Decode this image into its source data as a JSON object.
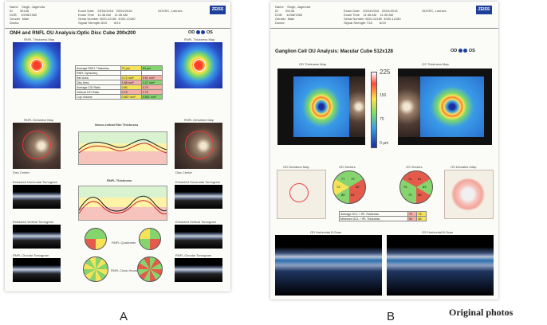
{
  "panel_a": {
    "caption": "A",
    "brand": "ZEISS",
    "title": "ONH and RNFL OU Analysis:Optic Disc Cube 200x200",
    "eye_od": "OD",
    "eye_os": "OS",
    "labels": {
      "rnfl_thickness_map": "RNFL Thickness Map",
      "rnfl_deviation_map": "RNFL Deviation Map",
      "neuro_retinal_rim": "Neuro-retinal Rim Thickness",
      "rnfl_thickness": "RNFL Thickness",
      "extracted_horizontal": "Extracted Horizontal Tomogram",
      "extracted_vertical": "Extracted Vertical Tomogram",
      "rnfl_circular": "RNFL Circular Tomogram",
      "rnfl_quadrants": "RNFL Quadrants",
      "rnfl_clock_hours": "RNFL Clock Hours",
      "disc_center": "Disc Center"
    },
    "table_rows": [
      "Average RNFL Thickness",
      "RNFL Symmetry",
      "Rim Area",
      "Disc Area",
      "Average C/D Ratio",
      "Vertical C/D Ratio",
      "Cup Volume"
    ],
    "table_od": [
      "71 µm",
      "",
      "0.72 mm²",
      "1.88 mm²",
      "0.80",
      "0.78",
      "0.867 mm³"
    ],
    "table_os": [
      "84 µm",
      "",
      "0.91 mm²",
      "2.27 mm²",
      "0.70",
      "0.75",
      "0.801 mm³"
    ]
  },
  "panel_b": {
    "caption": "B",
    "brand": "ZEISS",
    "title": "Ganglion Cell OU Analysis: Macular Cube 512x128",
    "eye_od": "OD",
    "eye_os": "OS",
    "labels": {
      "od_thickness_map": "OD Thickness Map",
      "os_thickness_map": "OS Thickness Map",
      "od_deviation_map": "OD Deviation Map",
      "os_deviation_map": "OS Deviation Map",
      "od_sectors": "OD Sectors",
      "os_sectors": "OS Sectors",
      "od_horizontal": "OD Horizontal B-Scan",
      "os_horizontal": "OS Horizontal B-Scan"
    },
    "scale_values": [
      "225",
      "150",
      "75",
      "0 µm"
    ],
    "od_sector_values": [
      "79",
      "82",
      "83",
      "80",
      "72",
      "77"
    ],
    "os_sector_values": [
      "81",
      "83",
      "80",
      "79",
      "75",
      "74"
    ],
    "table_rows": [
      "Average GCL + IPL Thickness",
      "Minimum GCL + IPL Thickness"
    ],
    "table_od": [
      "79",
      "64"
    ],
    "table_os": [
      "78",
      "68"
    ]
  },
  "footer": {
    "original_photos": "Original photos"
  }
}
